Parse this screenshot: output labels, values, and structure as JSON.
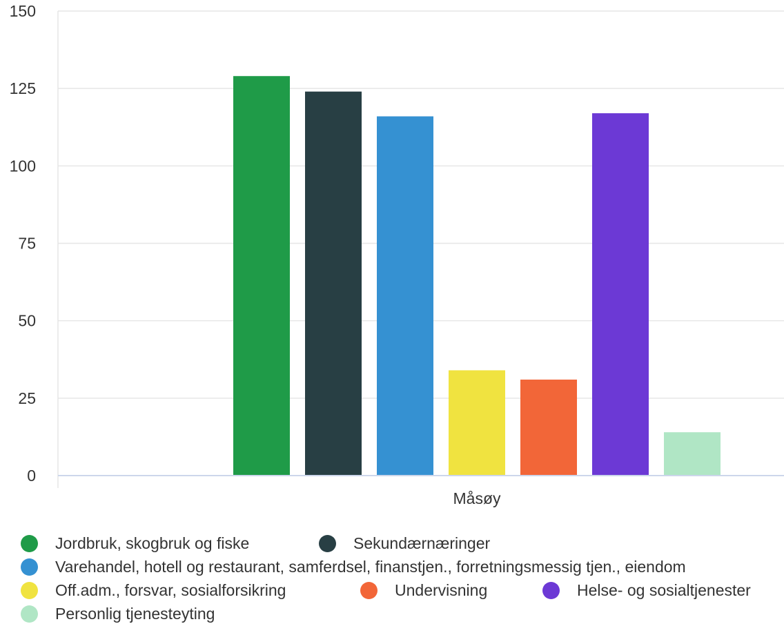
{
  "chart_data": {
    "type": "bar",
    "categories": [
      "Måsøy"
    ],
    "series": [
      {
        "name": "Jordbruk, skogbruk og fiske",
        "values": [
          129
        ],
        "color": "#1f9b48"
      },
      {
        "name": "Sekundærnæringer",
        "values": [
          124
        ],
        "color": "#283f44"
      },
      {
        "name": "Varehandel, hotell og restaurant, samferdsel, finanstjen., forretningsmessig tjen., eiendom",
        "values": [
          116
        ],
        "color": "#3591d2"
      },
      {
        "name": "Off.adm., forsvar, sosialforsikring",
        "values": [
          34
        ],
        "color": "#f0e340"
      },
      {
        "name": "Undervisning",
        "values": [
          31
        ],
        "color": "#f26638"
      },
      {
        "name": "Helse- og sosialtjenester",
        "values": [
          117
        ],
        "color": "#6c39d5"
      },
      {
        "name": "Personlig tjenesteyting",
        "values": [
          14
        ],
        "color": "#b0e6c5"
      }
    ],
    "ylim": [
      0,
      150
    ],
    "yticks": [
      0,
      25,
      50,
      75,
      100,
      125,
      150
    ],
    "grid": true,
    "legend_position": "bottom"
  }
}
